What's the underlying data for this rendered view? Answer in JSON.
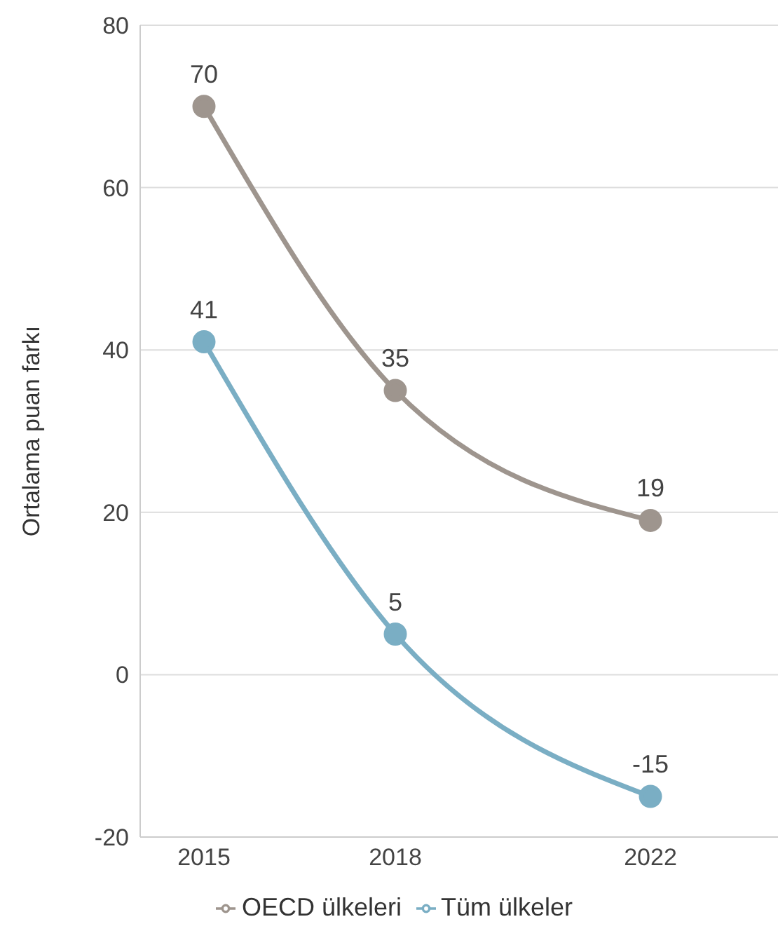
{
  "chart_data": {
    "type": "line",
    "ylabel": "Ortalama puan farkı",
    "x": [
      2015,
      2018,
      2022
    ],
    "series": [
      {
        "name": "OECD ülkeleri",
        "color": "#9e958e",
        "values": [
          70,
          35,
          19
        ]
      },
      {
        "name": "Tüm ülkeler",
        "color": "#7aaec4",
        "values": [
          41,
          5,
          -15
        ]
      }
    ],
    "xlim": [
      2014,
      2024
    ],
    "xticks": [
      2015,
      2018,
      2022
    ],
    "ylim": [
      -20,
      80
    ],
    "yticks": [
      -20,
      0,
      20,
      40,
      60,
      80
    ],
    "grid": "y",
    "legend": "bottom",
    "marker": "circle",
    "line_style": "solid",
    "data_labels": true
  }
}
